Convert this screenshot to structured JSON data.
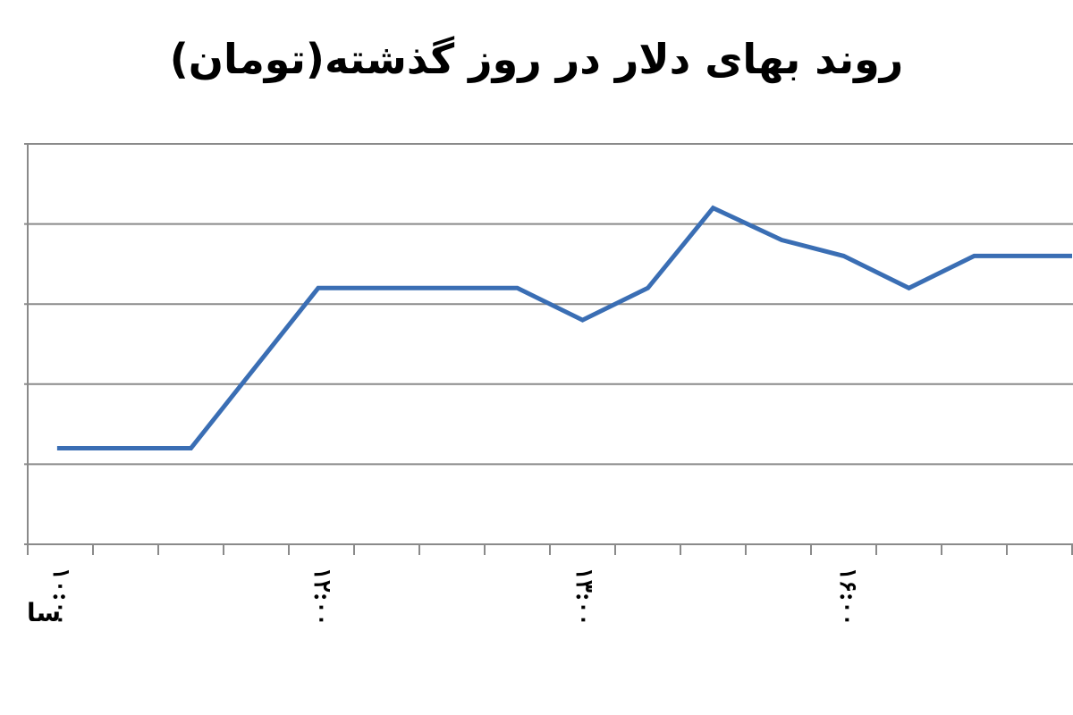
{
  "chart_data": {
    "type": "line",
    "title": "روند بهای دلار در روز گذشته(تومان)",
    "xlabel": "",
    "ylabel": "",
    "x_tick_labels": [
      "۱۰:۰۰",
      "۱۲:۰۰",
      "۱۳:۰۰",
      "۱۶:۰۰"
    ],
    "x_edge_label": "سا",
    "grid": true,
    "legend": "none",
    "y_gridline_count": 5,
    "x_tick_count": 16,
    "ylim": [
      0,
      5
    ],
    "series": [
      {
        "color": "#3a6eb4",
        "points": [
          {
            "x": 0.45,
            "y": 1.2
          },
          {
            "x": 2.5,
            "y": 1.2
          },
          {
            "x": 4.45,
            "y": 3.2
          },
          {
            "x": 7.5,
            "y": 3.2
          },
          {
            "x": 8.5,
            "y": 2.8
          },
          {
            "x": 9.5,
            "y": 3.2
          },
          {
            "x": 10.5,
            "y": 4.2
          },
          {
            "x": 11.55,
            "y": 3.8
          },
          {
            "x": 12.5,
            "y": 3.6
          },
          {
            "x": 13.5,
            "y": 3.2
          },
          {
            "x": 14.5,
            "y": 3.6
          },
          {
            "x": 16.0,
            "y": 3.6
          }
        ]
      }
    ]
  }
}
